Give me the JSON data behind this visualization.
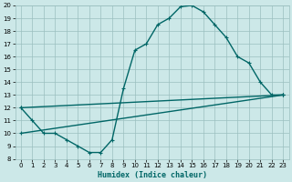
{
  "xlabel": "Humidex (Indice chaleur)",
  "bg_color": "#cce8e8",
  "grid_color": "#9bbfbf",
  "line_color": "#006666",
  "xlim": [
    -0.5,
    23.5
  ],
  "ylim": [
    8,
    20
  ],
  "xticks": [
    0,
    1,
    2,
    3,
    4,
    5,
    6,
    7,
    8,
    9,
    10,
    11,
    12,
    13,
    14,
    15,
    16,
    17,
    18,
    19,
    20,
    21,
    22,
    23
  ],
  "yticks": [
    8,
    9,
    10,
    11,
    12,
    13,
    14,
    15,
    16,
    17,
    18,
    19,
    20
  ],
  "curve1_x": [
    0,
    1,
    2,
    3,
    4,
    5,
    6,
    7,
    8,
    9,
    10,
    11,
    12,
    13,
    14,
    15,
    16,
    17,
    18,
    19,
    20,
    21,
    22,
    23
  ],
  "curve1_y": [
    12,
    11,
    10,
    10,
    9.5,
    9,
    8.5,
    8.5,
    9.5,
    13.5,
    16.5,
    17,
    18.5,
    19,
    19.9,
    20,
    19.5,
    18.5,
    17.5,
    16,
    15.5,
    14,
    13,
    13
  ],
  "curve2_x": [
    0,
    23
  ],
  "curve2_y": [
    12,
    13
  ],
  "curve3_x": [
    0,
    23
  ],
  "curve3_y": [
    10,
    13
  ],
  "linewidth": 1.0,
  "markersize": 3.5
}
